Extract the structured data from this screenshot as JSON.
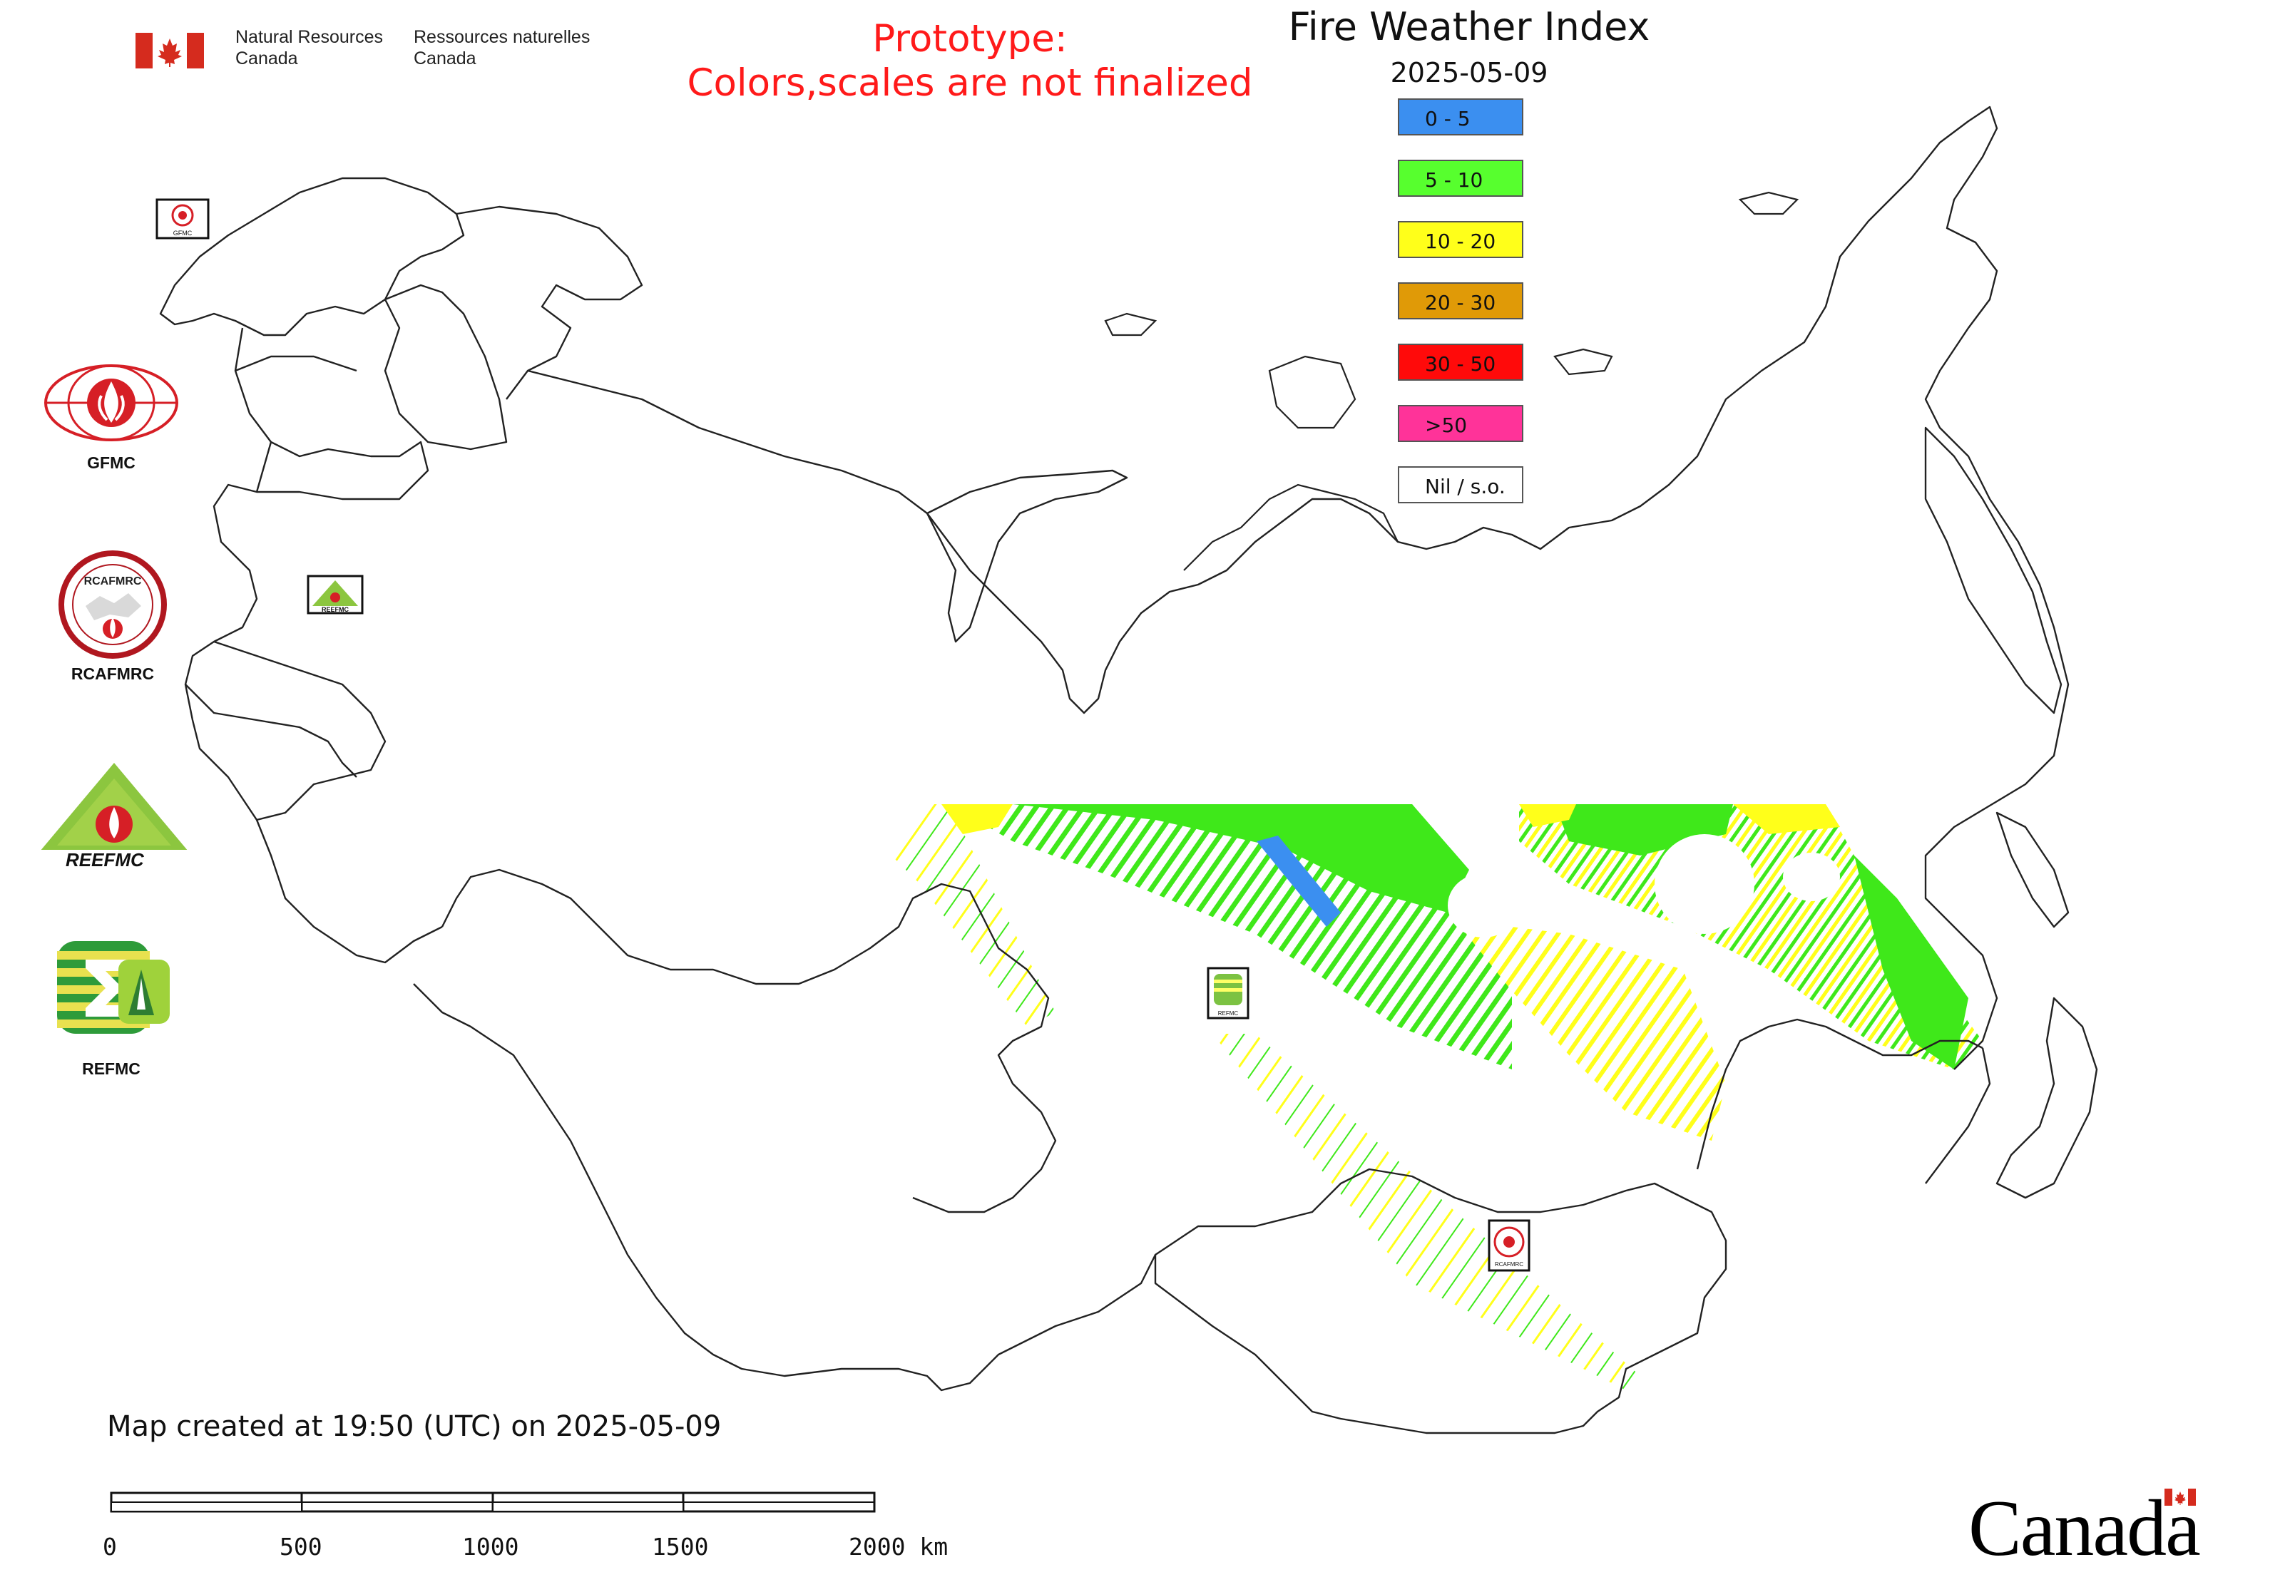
{
  "header": {
    "org_en_line1": "Natural Resources",
    "org_en_line2": "Canada",
    "org_fr_line1": "Ressources naturelles",
    "org_fr_line2": "Canada",
    "prototype_line1": "Prototype:",
    "prototype_line2": "Colors,scales are not finalized"
  },
  "legend": {
    "title": "Fire Weather Index",
    "date": "2025-05-09",
    "items": [
      {
        "label": "0 - 5",
        "color": "#3b8ff0"
      },
      {
        "label": "5 - 10",
        "color": "#57ff2e"
      },
      {
        "label": "10 - 20",
        "color": "#ffff1a"
      },
      {
        "label": "20 - 30",
        "color": "#e09a07"
      },
      {
        "label": "30 - 50",
        "color": "#ff0a0a"
      },
      {
        "label": ">50",
        "color": "#ff3399"
      },
      {
        "label": "Nil / s.o.",
        "color": "#ffffff"
      }
    ]
  },
  "logos": {
    "gfmc": "GFMC",
    "rcafmrc": "RCAFMRC",
    "reefmc": "REEFMC",
    "refmc": "REFMC",
    "reefmc_text": "REEFMC",
    "rcafmrc_text": "RCAFMRC",
    "gfmc_small": "GFMC",
    "refmc_small": "REFMC",
    "reefmc_small": "REEFMC",
    "rcafmrc_small": "RCAFMRC"
  },
  "footer": {
    "created": "Map created at 19:50 (UTC) on 2025-05-09",
    "scale_labels": [
      "0",
      "500",
      "1000",
      "1500",
      "2000 km"
    ],
    "wordmark": "Canada"
  }
}
